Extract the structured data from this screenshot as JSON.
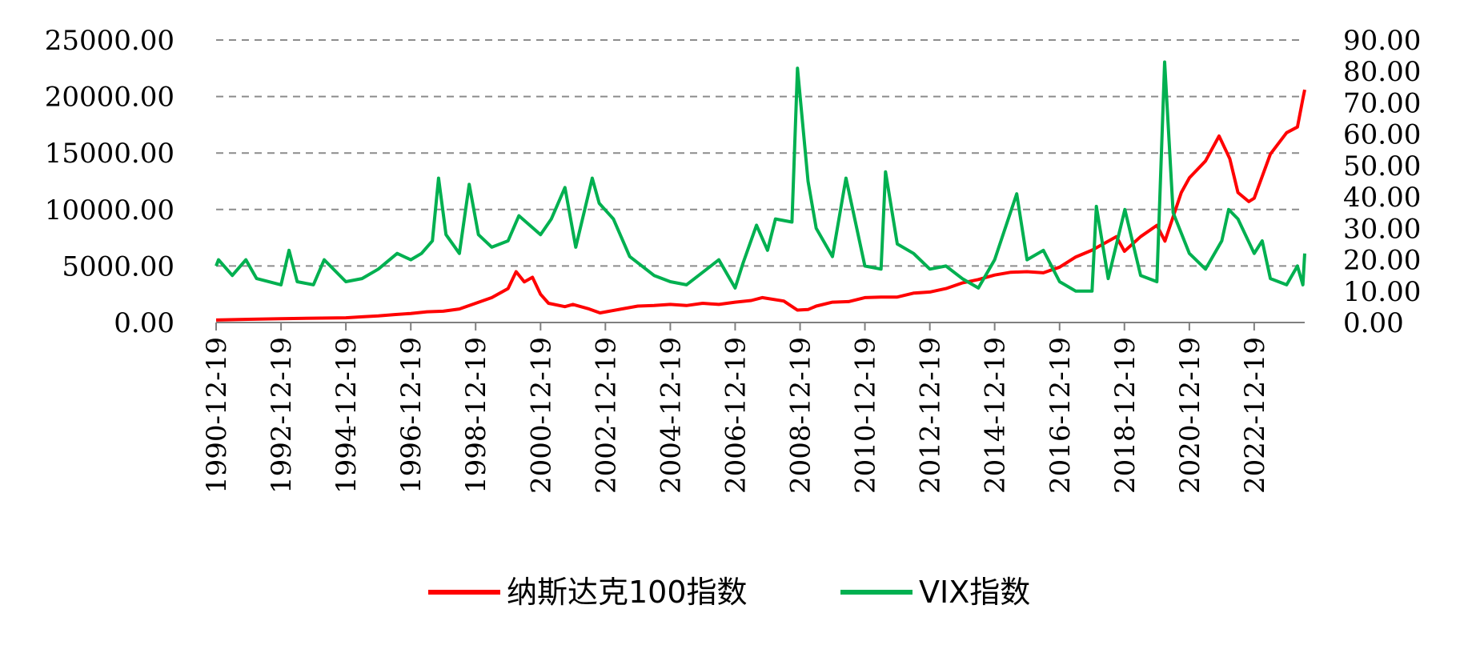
{
  "chart_data": {
    "type": "line",
    "title": "",
    "xlabel": "",
    "ylabel": "",
    "x_start": "1990-12-19",
    "x_end": "2024-07-10",
    "x_tick_labels": [
      "1990-12-19",
      "1992-12-19",
      "1994-12-19",
      "1996-12-19",
      "1998-12-19",
      "2000-12-19",
      "2002-12-19",
      "2004-12-19",
      "2006-12-19",
      "2008-12-19",
      "2010-12-19",
      "2012-12-19",
      "2014-12-19",
      "2016-12-19",
      "2018-12-19",
      "2020-12-19",
      "2022-12-19"
    ],
    "y_left": {
      "min": 0,
      "max": 25000,
      "ticks": [
        "0.00",
        "5000.00",
        "10000.00",
        "15000.00",
        "20000.00",
        "25000.00"
      ]
    },
    "y_right": {
      "min": 0,
      "max": 90,
      "ticks": [
        "0.00",
        "10.00",
        "20.00",
        "30.00",
        "40.00",
        "50.00",
        "60.00",
        "70.00",
        "80.00",
        "90.00"
      ]
    },
    "grid": "horizontal dashed",
    "legend_position": "bottom",
    "series": [
      {
        "name": "纳斯达克100指数",
        "axis": "left",
        "color": "#ff0000",
        "points": [
          [
            "1990-12-19",
            220
          ],
          [
            "1991-12-19",
            280
          ],
          [
            "1992-12-19",
            330
          ],
          [
            "1993-12-19",
            380
          ],
          [
            "1994-12-19",
            420
          ],
          [
            "1995-06-19",
            500
          ],
          [
            "1995-12-19",
            580
          ],
          [
            "1996-06-19",
            700
          ],
          [
            "1996-12-19",
            800
          ],
          [
            "1997-06-19",
            950
          ],
          [
            "1997-12-19",
            1000
          ],
          [
            "1998-06-19",
            1200
          ],
          [
            "1998-12-19",
            1700
          ],
          [
            "1999-06-19",
            2200
          ],
          [
            "1999-12-19",
            3000
          ],
          [
            "2000-03-19",
            4500
          ],
          [
            "2000-06-19",
            3600
          ],
          [
            "2000-09-19",
            4000
          ],
          [
            "2000-12-19",
            2500
          ],
          [
            "2001-03-19",
            1700
          ],
          [
            "2001-09-19",
            1400
          ],
          [
            "2001-12-19",
            1600
          ],
          [
            "2002-06-19",
            1200
          ],
          [
            "2002-10-19",
            850
          ],
          [
            "2003-06-19",
            1200
          ],
          [
            "2003-12-19",
            1450
          ],
          [
            "2004-06-19",
            1500
          ],
          [
            "2004-12-19",
            1600
          ],
          [
            "2005-06-19",
            1500
          ],
          [
            "2005-12-19",
            1700
          ],
          [
            "2006-06-19",
            1600
          ],
          [
            "2006-12-19",
            1800
          ],
          [
            "2007-06-19",
            1950
          ],
          [
            "2007-10-19",
            2200
          ],
          [
            "2008-06-19",
            1900
          ],
          [
            "2008-11-19",
            1100
          ],
          [
            "2009-03-19",
            1150
          ],
          [
            "2009-06-19",
            1450
          ],
          [
            "2009-12-19",
            1800
          ],
          [
            "2010-06-19",
            1850
          ],
          [
            "2010-12-19",
            2200
          ],
          [
            "2011-06-19",
            2250
          ],
          [
            "2011-12-19",
            2250
          ],
          [
            "2012-06-19",
            2600
          ],
          [
            "2012-12-19",
            2700
          ],
          [
            "2013-06-19",
            3000
          ],
          [
            "2013-12-19",
            3500
          ],
          [
            "2014-06-19",
            3800
          ],
          [
            "2014-12-19",
            4200
          ],
          [
            "2015-06-19",
            4450
          ],
          [
            "2015-12-19",
            4500
          ],
          [
            "2016-06-19",
            4400
          ],
          [
            "2016-12-19",
            4900
          ],
          [
            "2017-06-19",
            5800
          ],
          [
            "2017-12-19",
            6400
          ],
          [
            "2018-09-19",
            7600
          ],
          [
            "2018-12-19",
            6300
          ],
          [
            "2019-06-19",
            7600
          ],
          [
            "2019-12-19",
            8600
          ],
          [
            "2020-03-19",
            7200
          ],
          [
            "2020-09-19",
            11500
          ],
          [
            "2020-12-19",
            12800
          ],
          [
            "2021-06-19",
            14300
          ],
          [
            "2021-11-19",
            16500
          ],
          [
            "2022-03-19",
            14500
          ],
          [
            "2022-06-19",
            11500
          ],
          [
            "2022-10-19",
            10700
          ],
          [
            "2022-12-19",
            11000
          ],
          [
            "2023-06-19",
            14900
          ],
          [
            "2023-12-19",
            16800
          ],
          [
            "2024-04-19",
            17300
          ],
          [
            "2024-06-19",
            19800
          ],
          [
            "2024-07-10",
            20600
          ]
        ]
      },
      {
        "name": "VIX指数",
        "axis": "right",
        "color": "#00b050",
        "points": [
          [
            "1990-12-19",
            18
          ],
          [
            "1991-01-15",
            20
          ],
          [
            "1991-06-19",
            15
          ],
          [
            "1991-11-19",
            20
          ],
          [
            "1992-03-19",
            14
          ],
          [
            "1992-12-19",
            12
          ],
          [
            "1993-03-19",
            23
          ],
          [
            "1993-06-19",
            13
          ],
          [
            "1993-12-19",
            12
          ],
          [
            "1994-04-19",
            20
          ],
          [
            "1994-12-19",
            13
          ],
          [
            "1995-06-19",
            14
          ],
          [
            "1995-12-19",
            17
          ],
          [
            "1996-07-19",
            22
          ],
          [
            "1996-12-19",
            20
          ],
          [
            "1997-04-19",
            22
          ],
          [
            "1997-08-19",
            26
          ],
          [
            "1997-10-28",
            46
          ],
          [
            "1998-01-19",
            28
          ],
          [
            "1998-06-19",
            22
          ],
          [
            "1998-10-08",
            44
          ],
          [
            "1999-01-19",
            28
          ],
          [
            "1999-06-19",
            24
          ],
          [
            "1999-12-19",
            26
          ],
          [
            "2000-04-19",
            34
          ],
          [
            "2000-12-19",
            28
          ],
          [
            "2001-04-19",
            33
          ],
          [
            "2001-09-20",
            43
          ],
          [
            "2002-01-19",
            24
          ],
          [
            "2002-07-24",
            46
          ],
          [
            "2002-10-10",
            38
          ],
          [
            "2003-03-19",
            33
          ],
          [
            "2003-09-19",
            21
          ],
          [
            "2004-06-19",
            15
          ],
          [
            "2004-12-19",
            13
          ],
          [
            "2005-06-19",
            12
          ],
          [
            "2006-06-19",
            20
          ],
          [
            "2006-12-19",
            11
          ],
          [
            "2007-03-19",
            19
          ],
          [
            "2007-08-16",
            31
          ],
          [
            "2007-12-19",
            23
          ],
          [
            "2008-03-17",
            33
          ],
          [
            "2008-09-19",
            32
          ],
          [
            "2008-11-20",
            81
          ],
          [
            "2009-03-19",
            45
          ],
          [
            "2009-06-19",
            30
          ],
          [
            "2009-12-19",
            21
          ],
          [
            "2010-05-20",
            46
          ],
          [
            "2010-12-19",
            18
          ],
          [
            "2011-06-19",
            17
          ],
          [
            "2011-08-08",
            48
          ],
          [
            "2011-12-19",
            25
          ],
          [
            "2012-06-19",
            22
          ],
          [
            "2012-12-19",
            17
          ],
          [
            "2013-06-19",
            18
          ],
          [
            "2013-12-19",
            14
          ],
          [
            "2014-06-19",
            11
          ],
          [
            "2014-12-19",
            20
          ],
          [
            "2015-08-24",
            41
          ],
          [
            "2015-12-19",
            20
          ],
          [
            "2016-06-19",
            23
          ],
          [
            "2016-12-19",
            13
          ],
          [
            "2017-06-19",
            10
          ],
          [
            "2017-12-19",
            10
          ],
          [
            "2018-02-06",
            37
          ],
          [
            "2018-06-19",
            14
          ],
          [
            "2018-12-24",
            36
          ],
          [
            "2019-06-19",
            15
          ],
          [
            "2019-12-19",
            13
          ],
          [
            "2020-03-16",
            83
          ],
          [
            "2020-06-19",
            35
          ],
          [
            "2020-12-19",
            22
          ],
          [
            "2021-06-19",
            17
          ],
          [
            "2021-12-19",
            26
          ],
          [
            "2022-03-07",
            36
          ],
          [
            "2022-06-19",
            33
          ],
          [
            "2022-12-19",
            22
          ],
          [
            "2023-03-19",
            26
          ],
          [
            "2023-06-19",
            14
          ],
          [
            "2023-12-19",
            12
          ],
          [
            "2024-04-19",
            18
          ],
          [
            "2024-06-19",
            12
          ],
          [
            "2024-07-10",
            22
          ]
        ]
      }
    ]
  }
}
